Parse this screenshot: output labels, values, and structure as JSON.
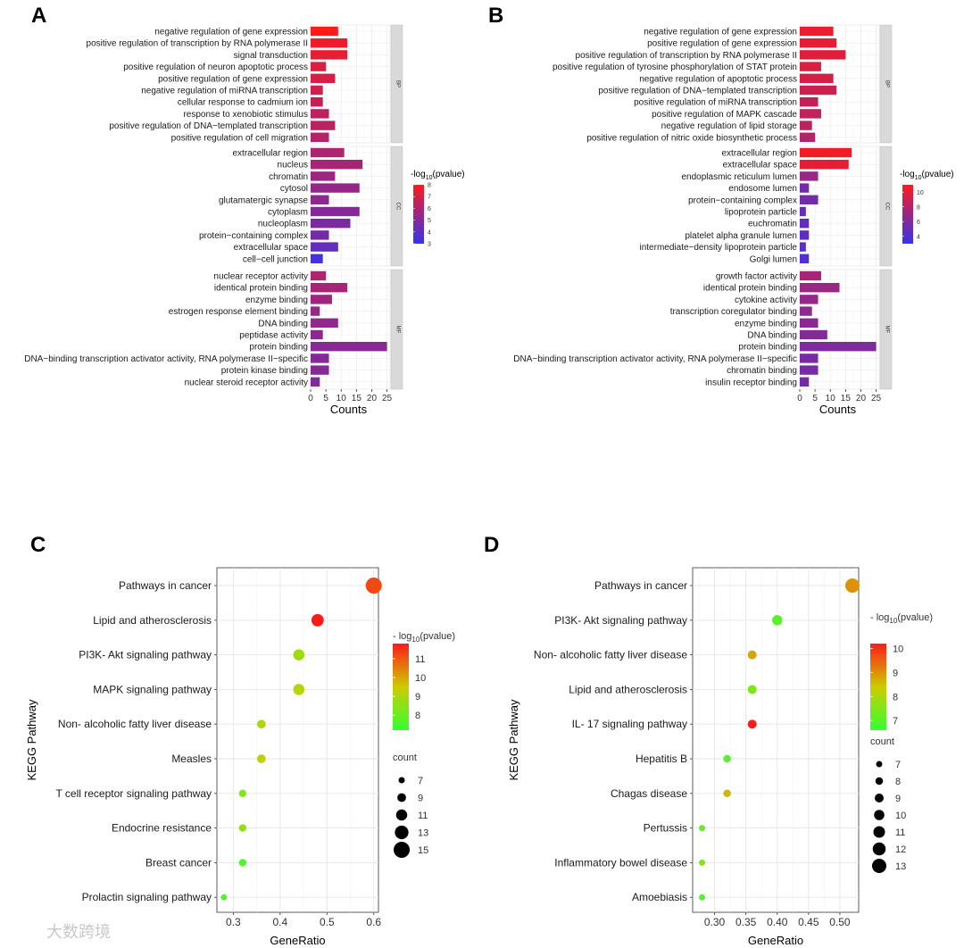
{
  "watermark": "大数跨境",
  "chart_data": [
    {
      "panel": "A",
      "type": "bar",
      "orientation": "horizontal",
      "xlabel": "Counts",
      "xticks": [
        0,
        5,
        10,
        15,
        20,
        25
      ],
      "xlim": [
        0,
        26
      ],
      "color_scale": {
        "title_prefix": "-log",
        "title_sub": "10",
        "title_suffix": "(pvalue)",
        "min": 3,
        "max": 8,
        "ticks": [
          3,
          4,
          5,
          6,
          7,
          8
        ],
        "low": "#3333ee",
        "high": "#ff1a1a"
      },
      "facets": [
        {
          "name": "BP",
          "categories": [
            "negative regulation of gene expression",
            "positive regulation of transcription by RNA polymerase II",
            "signal transduction",
            "positive regulation of neuron apoptotic process",
            "positive regulation of gene expression",
            "negative regulation of miRNA transcription",
            "cellular response to cadmium ion",
            "response to xenobiotic stimulus",
            "positive regulation of DNA−templated transcription",
            "positive regulation of cell migration"
          ],
          "values": [
            9,
            12,
            12,
            5,
            8,
            4,
            4,
            6,
            8,
            6
          ],
          "pvalue": [
            8.2,
            7.6,
            7.4,
            7.1,
            7.0,
            6.8,
            6.6,
            6.4,
            6.3,
            6.2
          ]
        },
        {
          "name": "CC",
          "categories": [
            "extracellular region",
            "nucleus",
            "chromatin",
            "cytosol",
            "glutamatergic synapse",
            "cytoplasm",
            "nucleoplasm",
            "protein−containing complex",
            "extracellular space",
            "cell−cell junction"
          ],
          "values": [
            11,
            17,
            8,
            16,
            6,
            16,
            13,
            6,
            9,
            4
          ],
          "pvalue": [
            6.0,
            5.8,
            5.6,
            5.4,
            5.2,
            5.0,
            4.8,
            4.6,
            4.2,
            3.5
          ]
        },
        {
          "name": "MF",
          "categories": [
            "nuclear receptor activity",
            "identical protein binding",
            "enzyme binding",
            "estrogen response element binding",
            "DNA binding",
            "peptidase activity",
            "protein binding",
            "DNA−binding transcription activator activity, RNA polymerase II−specific",
            "protein kinase binding",
            "nuclear steroid receptor activity"
          ],
          "values": [
            5,
            12,
            7,
            3,
            9,
            4,
            25,
            6,
            6,
            3
          ],
          "pvalue": [
            6.0,
            5.8,
            5.6,
            5.4,
            5.3,
            5.2,
            5.1,
            5.0,
            5.0,
            4.9
          ]
        }
      ]
    },
    {
      "panel": "B",
      "type": "bar",
      "orientation": "horizontal",
      "xlabel": "Counts",
      "xticks": [
        0,
        5,
        10,
        15,
        20,
        25
      ],
      "xlim": [
        0,
        26
      ],
      "color_scale": {
        "title_prefix": "-log",
        "title_sub": "10",
        "title_suffix": "(pvalue)",
        "min": 3,
        "max": 11,
        "ticks": [
          4,
          6,
          8,
          10
        ],
        "low": "#3333ee",
        "high": "#ff1a1a"
      },
      "facets": [
        {
          "name": "BP",
          "categories": [
            "negative regulation of gene expression",
            "positive regulation of gene expression",
            "positive regulation of transcription by RNA polymerase II",
            "positive regulation of tyrosine phosphorylation of STAT protein",
            "negative regulation of apoptotic process",
            "positive regulation of DNA−templated transcription",
            "positive regulation of miRNA transcription",
            "positive regulation of MAPK cascade",
            "negative regulation of lipid storage",
            "positive regulation of nitric oxide biosynthetic process"
          ],
          "values": [
            11,
            12,
            15,
            7,
            11,
            12,
            6,
            7,
            4,
            5
          ],
          "pvalue": [
            10.2,
            10.0,
            9.8,
            9.5,
            9.3,
            9.0,
            8.7,
            8.5,
            8.3,
            8.0
          ]
        },
        {
          "name": "CC",
          "categories": [
            "extracellular region",
            "extracellular space",
            "endoplasmic reticulum lumen",
            "endosome lumen",
            "protein−containing complex",
            "lipoprotein particle",
            "euchromatin",
            "platelet alpha granule lumen",
            "intermediate−density lipoprotein particle",
            "Golgi lumen"
          ],
          "values": [
            17,
            16,
            6,
            3,
            6,
            2,
            3,
            3,
            2,
            3
          ],
          "pvalue": [
            10.5,
            10.0,
            7.0,
            5.5,
            5.5,
            5.0,
            4.8,
            4.6,
            4.4,
            4.2
          ]
        },
        {
          "name": "MF",
          "categories": [
            "growth factor activity",
            "identical protein binding",
            "cytokine activity",
            "transcription coregulator binding",
            "enzyme binding",
            "DNA binding",
            "protein binding",
            "DNA−binding transcription activator activity, RNA polymerase II−specific",
            "chromatin binding",
            "insulin receptor binding"
          ],
          "values": [
            7,
            13,
            6,
            4,
            6,
            9,
            25,
            6,
            6,
            3
          ],
          "pvalue": [
            7.5,
            7.0,
            6.8,
            6.6,
            6.4,
            6.2,
            6.0,
            5.8,
            5.7,
            5.6
          ]
        }
      ]
    },
    {
      "panel": "C",
      "type": "scatter",
      "xlabel": "GeneRatio",
      "ylabel": "KEGG Pathway",
      "xlim": [
        0.265,
        0.61
      ],
      "xticks": [
        0.3,
        0.4,
        0.5,
        0.6
      ],
      "xtick_labels": [
        "0.3",
        "0.4",
        "0.5",
        "0.6"
      ],
      "categories": [
        "Pathways in cancer",
        "Lipid and atherosclerosis",
        "PI3K- Akt signaling pathway",
        "MAPK signaling pathway",
        "Non- alcoholic fatty liver disease",
        "Measles",
        "T cell receptor signaling pathway",
        "Endocrine resistance",
        "Breast cancer",
        "Prolactin signaling pathway"
      ],
      "x": [
        0.6,
        0.48,
        0.44,
        0.44,
        0.36,
        0.36,
        0.32,
        0.32,
        0.32,
        0.28
      ],
      "count": [
        15,
        12,
        11,
        11,
        9,
        9,
        8,
        8,
        8,
        7
      ],
      "pvalue": [
        11.2,
        11.8,
        8.8,
        9.2,
        9.0,
        9.3,
        8.4,
        8.6,
        7.6,
        7.7
      ],
      "color_scale": {
        "title": "- log",
        "title_sub": "10",
        "title_suffix": "(pvalue)",
        "min": 7.2,
        "max": 11.8,
        "ticks": [
          8,
          9,
          10,
          11
        ],
        "low": "#33ff33",
        "mid": "#cccc00",
        "high": "#ff1a1a"
      },
      "size_legend": {
        "title": "count",
        "values": [
          7,
          9,
          11,
          13,
          15
        ]
      }
    },
    {
      "panel": "D",
      "type": "scatter",
      "xlabel": "GeneRatio",
      "ylabel": "KEGG Pathway",
      "xlim": [
        0.265,
        0.53
      ],
      "xticks": [
        0.3,
        0.35,
        0.4,
        0.45,
        0.5
      ],
      "xtick_labels": [
        "0.30",
        "0.35",
        "0.40",
        "0.45",
        "0.50"
      ],
      "categories": [
        "Pathways in cancer",
        "PI3K- Akt signaling pathway",
        "Non- alcoholic fatty liver disease",
        "Lipid and atherosclerosis",
        "IL- 17 signaling pathway",
        "Hepatitis B",
        "Chagas disease",
        "Pertussis",
        "Inflammatory bowel disease",
        "Amoebiasis"
      ],
      "x": [
        0.52,
        0.4,
        0.36,
        0.36,
        0.36,
        0.32,
        0.32,
        0.28,
        0.28,
        0.28
      ],
      "count": [
        13,
        10,
        9,
        9,
        9,
        8,
        8,
        7,
        7,
        7
      ],
      "pvalue": [
        9.0,
        7.0,
        8.8,
        7.5,
        10.2,
        7.0,
        8.6,
        7.2,
        7.6,
        7.0
      ],
      "color_scale": {
        "title": "- log",
        "title_sub": "10",
        "title_suffix": "(pvalue)",
        "min": 6.6,
        "max": 10.2,
        "ticks": [
          7,
          8,
          9,
          10
        ],
        "low": "#33ff33",
        "mid": "#cccc00",
        "high": "#ff1a1a"
      },
      "size_legend": {
        "title": "count",
        "values": [
          7,
          8,
          9,
          10,
          11,
          12,
          13
        ]
      }
    }
  ]
}
